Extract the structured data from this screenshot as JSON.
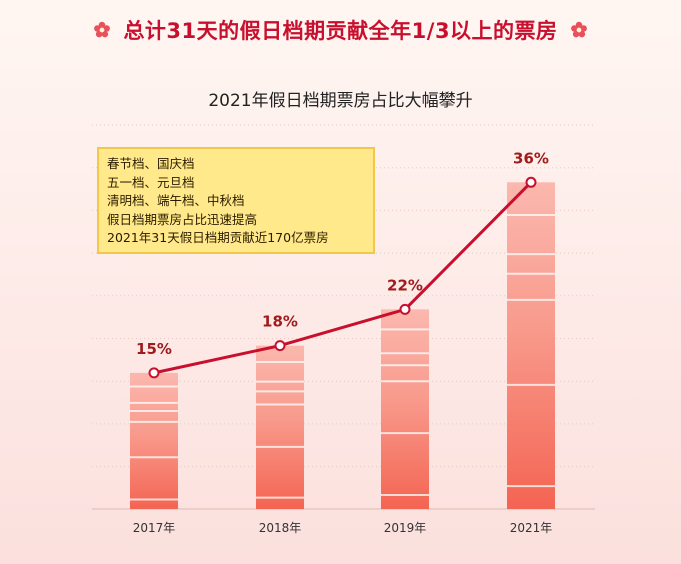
{
  "headline": "总计31天的假日档期贡献全年1/3以上的票房",
  "chart_data": {
    "type": "bar",
    "title": "2021年假日档期票房占比大幅攀升",
    "categories": [
      "2017年",
      "2018年",
      "2019年",
      "2021年"
    ],
    "values": [
      15,
      18,
      22,
      36
    ],
    "value_labels": [
      "15%",
      "18%",
      "22%",
      "36%"
    ],
    "overlay": {
      "type": "line",
      "values": [
        15,
        18,
        22,
        36
      ],
      "color": "#c8102e"
    },
    "ylim": [
      0,
      40
    ],
    "grid": true,
    "xlabel": "",
    "ylabel": "",
    "colors": {
      "bar_top": "#fbb3a8",
      "bar_bottom": "#f46b58",
      "line": "#c8102e",
      "label": "#a01c1c"
    }
  },
  "callout": {
    "lines": [
      "春节档、国庆档",
      "五一档、元旦档",
      "清明档、端午档、中秋档",
      "假日档期票房占比迅速提高",
      "2021年31天假日档期贡献近170亿票房"
    ]
  },
  "icons": {
    "left": "flower-icon",
    "right": "flower-icon"
  }
}
